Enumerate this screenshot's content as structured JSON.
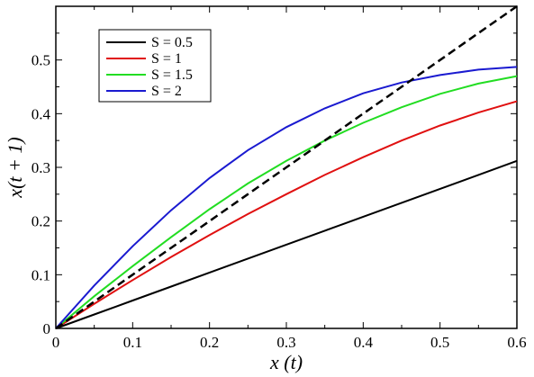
{
  "chart_data": {
    "type": "line",
    "title": "",
    "xlabel": "x (t)",
    "ylabel": "x(t + 1)",
    "xlim": [
      0,
      0.6
    ],
    "ylim": [
      0,
      0.6
    ],
    "xticks": [
      "0",
      "0.1",
      "0.2",
      "0.3",
      "0.4",
      "0.5",
      "0.6"
    ],
    "yticks": [
      "0",
      "0.1",
      "0.2",
      "0.3",
      "0.4",
      "0.5"
    ],
    "grid": false,
    "legend_position": "top-left",
    "x": [
      0,
      0.05,
      0.1,
      0.15,
      0.2,
      0.25,
      0.3,
      0.35,
      0.4,
      0.45,
      0.5,
      0.55,
      0.6
    ],
    "series": [
      {
        "name": "S = 0.5",
        "color": "#000000",
        "style": "solid",
        "values": [
          0,
          0.026,
          0.052,
          0.078,
          0.104,
          0.13,
          0.156,
          0.182,
          0.208,
          0.234,
          0.26,
          0.286,
          0.312
        ]
      },
      {
        "name": "S = 1",
        "color": "#e01010",
        "style": "solid",
        "values": [
          0,
          0.046,
          0.09,
          0.133,
          0.174,
          0.213,
          0.25,
          0.286,
          0.319,
          0.35,
          0.378,
          0.402,
          0.423
        ]
      },
      {
        "name": "S = 1.5",
        "color": "#22dd22",
        "style": "solid",
        "values": [
          0,
          0.06,
          0.116,
          0.17,
          0.222,
          0.27,
          0.312,
          0.35,
          0.383,
          0.412,
          0.437,
          0.456,
          0.47
        ]
      },
      {
        "name": "S = 2",
        "color": "#1a1ad0",
        "style": "solid",
        "values": [
          0,
          0.08,
          0.153,
          0.22,
          0.28,
          0.332,
          0.375,
          0.41,
          0.438,
          0.458,
          0.472,
          0.482,
          0.487
        ]
      },
      {
        "name": "",
        "color": "#000000",
        "style": "dashed",
        "values": [
          0,
          0.05,
          0.1,
          0.15,
          0.2,
          0.25,
          0.3,
          0.35,
          0.4,
          0.45,
          0.5,
          0.55,
          0.6
        ]
      }
    ]
  }
}
